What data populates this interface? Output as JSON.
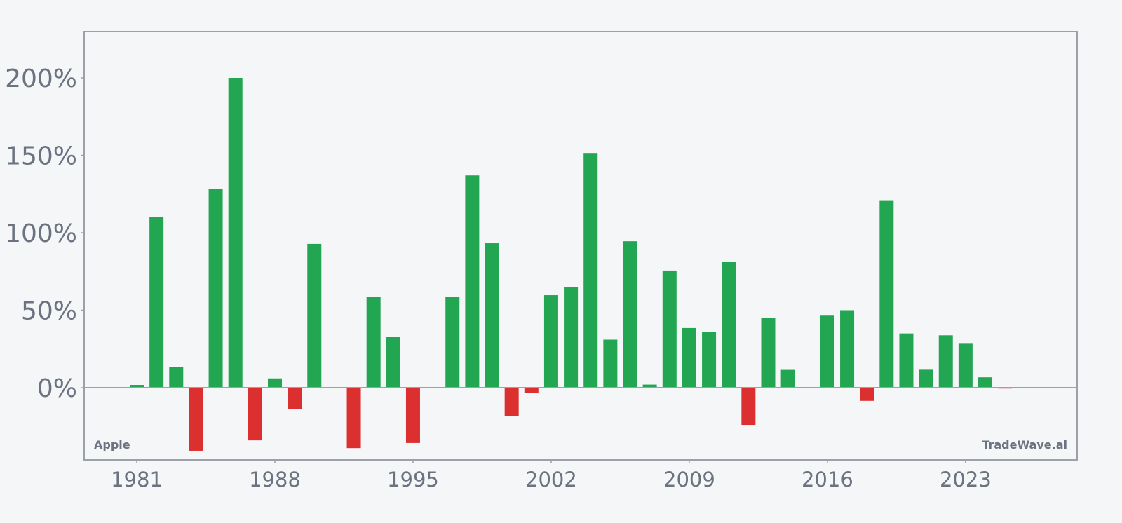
{
  "chart_data": {
    "type": "bar",
    "title": "",
    "xlabel": "",
    "ylabel": "",
    "ylim": [
      -46,
      230
    ],
    "xlim": [
      1978.3,
      2028.6
    ],
    "grid": false,
    "legend": null,
    "y_ticks": [
      {
        "value": 0,
        "label": "0%"
      },
      {
        "value": 50,
        "label": "50%"
      },
      {
        "value": 100,
        "label": "100%"
      },
      {
        "value": 150,
        "label": "150%"
      },
      {
        "value": 200,
        "label": "200%"
      }
    ],
    "x_ticks": [
      {
        "value": 1981,
        "label": "1981"
      },
      {
        "value": 1988,
        "label": "1988"
      },
      {
        "value": 1995,
        "label": "1995"
      },
      {
        "value": 2002,
        "label": "2002"
      },
      {
        "value": 2009,
        "label": "2009"
      },
      {
        "value": 2016,
        "label": "2016"
      },
      {
        "value": 2023,
        "label": "2023"
      }
    ],
    "categories": [
      1981,
      1982,
      1983,
      1984,
      1985,
      1986,
      1987,
      1988,
      1989,
      1990,
      1991,
      1992,
      1993,
      1994,
      1995,
      1996,
      1997,
      1998,
      1999,
      2000,
      2001,
      2002,
      2003,
      2004,
      2005,
      2006,
      2007,
      2008,
      2009,
      2010,
      2011,
      2012,
      2013,
      2014,
      2015,
      2016,
      2017,
      2018,
      2019,
      2020,
      2021,
      2022,
      2023,
      2024,
      2025
    ],
    "values": [
      1.8,
      110,
      13.3,
      -40.7,
      128.5,
      200,
      -34,
      6,
      -14,
      92.8,
      0,
      -39,
      58.4,
      32.6,
      -35.7,
      0,
      58.8,
      137,
      93.2,
      -18.1,
      -3.2,
      59.7,
      64.7,
      151.5,
      31,
      94.5,
      2,
      75.6,
      38.5,
      36,
      81,
      -24,
      45,
      11.5,
      0,
      46.5,
      50,
      -8.5,
      121,
      35,
      11.6,
      33.8,
      28.8,
      6.7,
      -0.5
    ],
    "colors": {
      "positive": "#22a652",
      "negative": "#dc2f2f"
    },
    "annotations": [
      {
        "text": "Apple",
        "position": "bottom-left"
      },
      {
        "text": "TradeWave.ai",
        "position": "bottom-right"
      }
    ]
  },
  "labels": {
    "ticker": "Apple",
    "watermark": "TradeWave.ai"
  },
  "style": {
    "background": "#f4f6f8",
    "axis_color": "#9ca0a8",
    "text_color": "#6b7280"
  }
}
